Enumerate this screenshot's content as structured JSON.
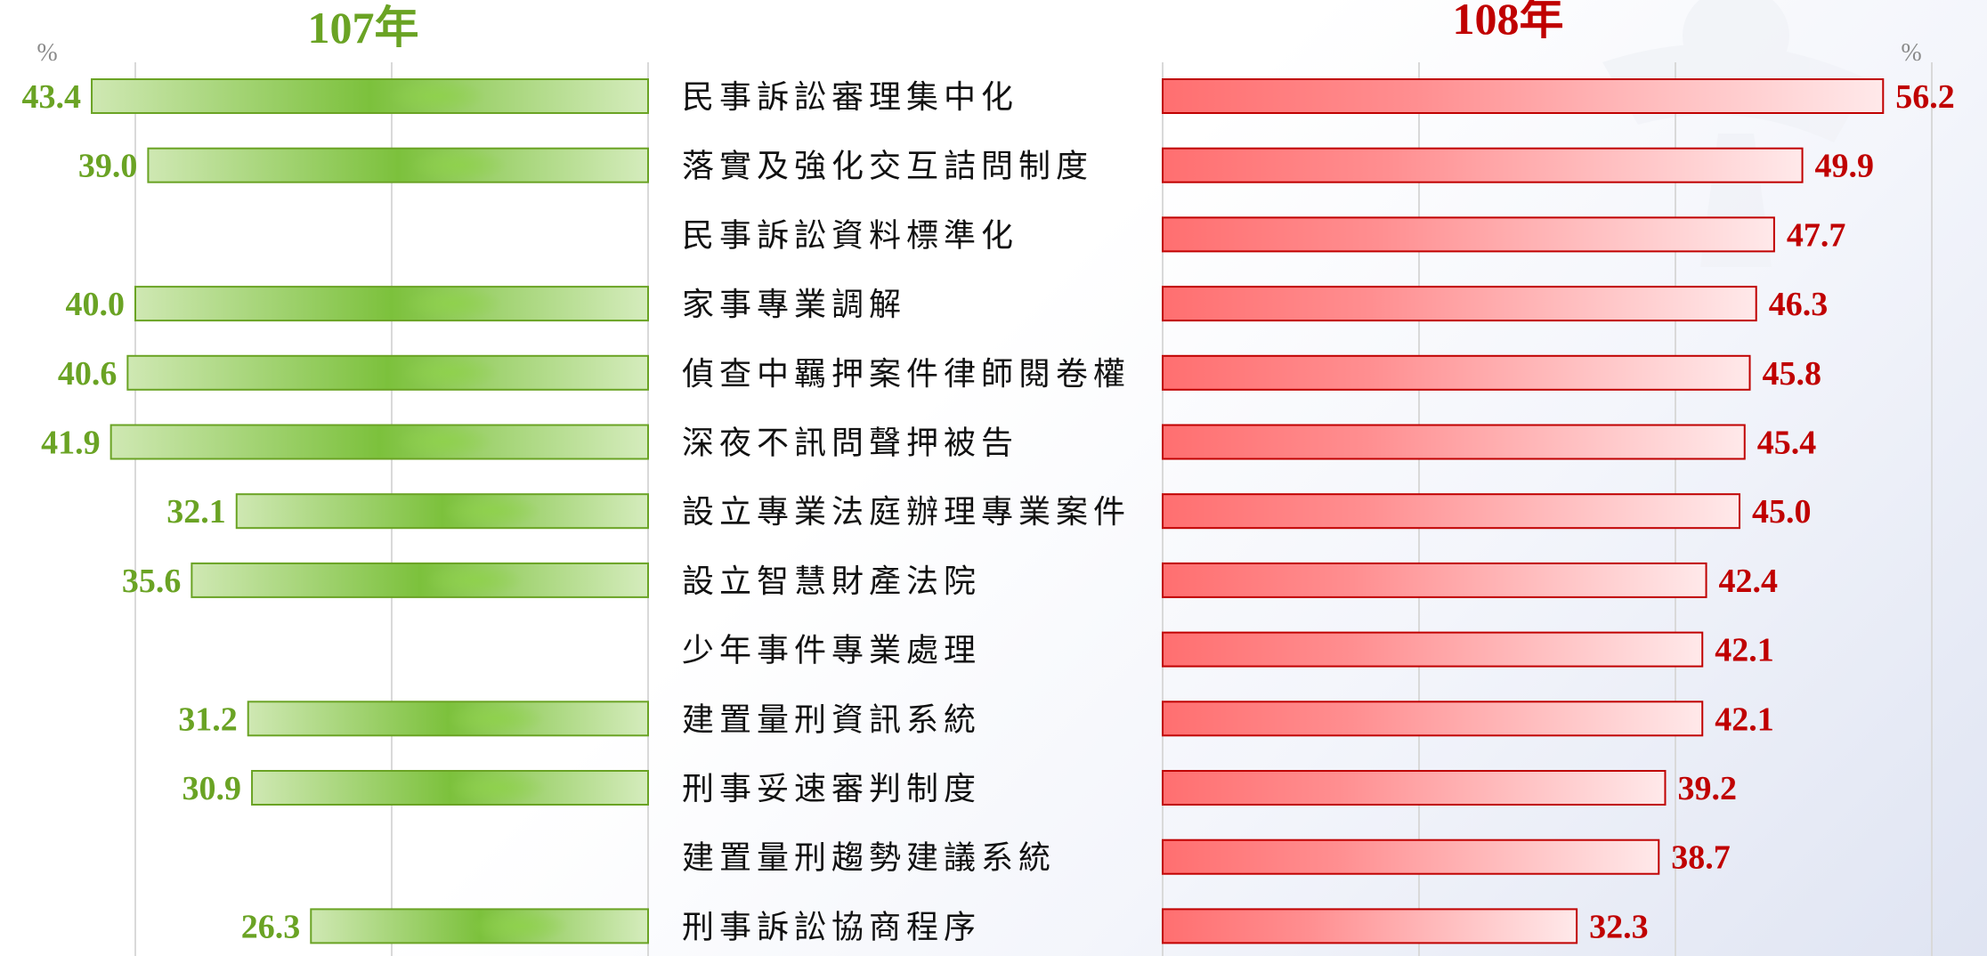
{
  "chart_data": {
    "type": "bar",
    "layout": "butterfly",
    "categories": [
      "民事訴訟審理集中化",
      "落實及強化交互詰問制度",
      "民事訴訟資料標準化",
      "家事專業調解",
      "偵查中羈押案件律師閱卷權",
      "深夜不訊問聲押被告",
      "設立專業法庭辦理專業案件",
      "設立智慧財產法院",
      "少年事件專業處理",
      "建置量刑資訊系統",
      "刑事妥速審判制度",
      "建置量刑趨勢建議系統",
      "刑事訴訟協商程序"
    ],
    "series": [
      {
        "name": "107年",
        "color": "#6aa324",
        "values": [
          43.4,
          39.0,
          null,
          40.0,
          40.6,
          41.9,
          32.1,
          35.6,
          null,
          31.2,
          30.9,
          null,
          26.3
        ],
        "labels": [
          "43.4",
          "39.0",
          "",
          "40.0",
          "40.6",
          "41.9",
          "32.1",
          "35.6",
          "",
          "31.2",
          "30.9",
          "",
          "26.3"
        ]
      },
      {
        "name": "108年",
        "color": "#c00000",
        "values": [
          56.2,
          49.9,
          47.7,
          46.3,
          45.8,
          45.4,
          45.0,
          42.4,
          42.1,
          42.1,
          39.2,
          38.7,
          32.3
        ],
        "labels": [
          "56.2",
          "49.9",
          "47.7",
          "46.3",
          "45.8",
          "45.4",
          "45.0",
          "42.4",
          "42.1",
          "42.1",
          "39.2",
          "38.7",
          "32.3"
        ]
      }
    ],
    "unit_left": "%",
    "unit_right": "%",
    "xlim": [
      0,
      60
    ],
    "grid": true
  }
}
